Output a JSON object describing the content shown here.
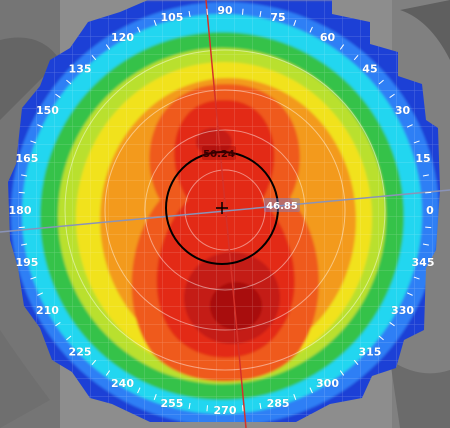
{
  "corneal_map": {
    "axis_labels": [
      "0",
      "15",
      "30",
      "45",
      "60",
      "75",
      "90",
      "105",
      "120",
      "135",
      "150",
      "165",
      "180",
      "195",
      "210",
      "225",
      "240",
      "255",
      "270",
      "285",
      "300",
      "315",
      "330",
      "345"
    ],
    "max_reading": "50.24",
    "axis_reading": "46.85",
    "colors": {
      "background_eye": "#8f8f8f",
      "outer_blue": "#1f3fd6",
      "blue": "#2f7ff5",
      "cyan": "#22d6f0",
      "green": "#36c24a",
      "yellow_green": "#b9e02e",
      "yellow": "#f1e21c",
      "orange": "#f39a1c",
      "orange_red": "#ef5a1a",
      "red": "#e32a18",
      "dark_red": "#c41a12",
      "deep_red": "#a80f0e",
      "meridian_red": "#d4322a",
      "meridian_gray": "#8a93b8",
      "circle": "#000000"
    }
  }
}
